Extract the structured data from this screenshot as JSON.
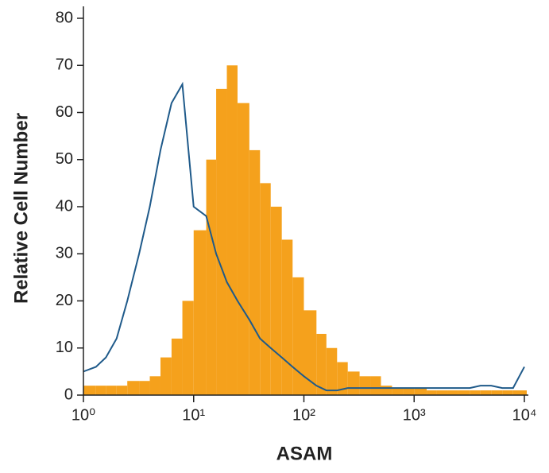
{
  "chart_data": {
    "type": "histogram",
    "x_label": "ASAM",
    "y_label": "Relative Cell Number",
    "x": [
      1,
      1.3,
      1.6,
      2,
      2.5,
      3.2,
      4,
      5,
      6.3,
      7.9,
      10,
      13,
      16,
      20,
      25,
      32,
      40,
      50,
      63,
      79,
      100,
      130,
      160,
      200,
      250,
      320,
      400,
      500,
      630,
      790,
      1000,
      1300,
      1600,
      2000,
      2500,
      3200,
      4000,
      5000,
      6300,
      7900,
      10000
    ],
    "series": [
      {
        "style": "filled",
        "color": "#f5a11c",
        "values": [
          2,
          2,
          2,
          2,
          3,
          3,
          4,
          8,
          12,
          20,
          35,
          50,
          65,
          70,
          62,
          52,
          45,
          40,
          33,
          25,
          18,
          13,
          10,
          7,
          5,
          4,
          4,
          2,
          1.5,
          1.5,
          1.5,
          1,
          1,
          1,
          1,
          1,
          1,
          1,
          1,
          1,
          1
        ]
      },
      {
        "style": "outline",
        "color": "#1f5a8a",
        "values": [
          5,
          6,
          8,
          12,
          20,
          30,
          40,
          52,
          62,
          66,
          40,
          38,
          30,
          24,
          20,
          16,
          12,
          10,
          8,
          6,
          4,
          2,
          1,
          1,
          1.5,
          1.5,
          1.5,
          1.5,
          1.5,
          1.5,
          1.5,
          1.5,
          1.5,
          1.5,
          1.5,
          1.5,
          2,
          2,
          1.5,
          1.5,
          6
        ]
      }
    ],
    "xscale": "log",
    "xlim": [
      1,
      10000
    ],
    "xticks": [
      {
        "value": 1,
        "label": "10⁰"
      },
      {
        "value": 10,
        "label": "10¹"
      },
      {
        "value": 100,
        "label": "10²"
      },
      {
        "value": 1000,
        "label": "10³"
      },
      {
        "value": 10000,
        "label": "10⁴"
      }
    ],
    "ylim": [
      0,
      80
    ],
    "yticks": [
      0,
      10,
      20,
      30,
      40,
      50,
      60,
      70,
      80
    ]
  }
}
